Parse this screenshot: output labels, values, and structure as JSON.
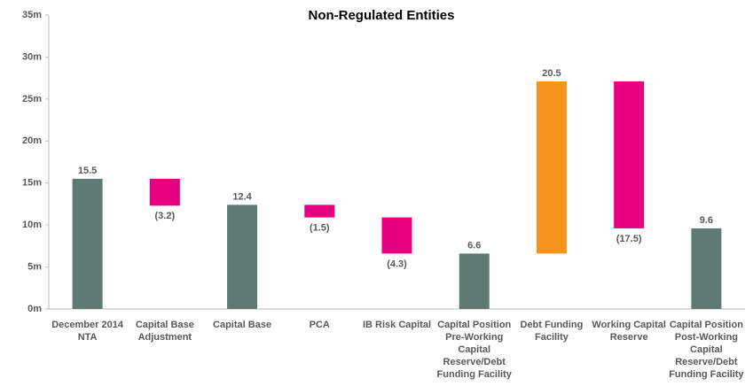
{
  "chart_data": {
    "type": "waterfall",
    "title": "Non-Regulated Entities",
    "categories": [
      [
        "December 2014",
        "NTA"
      ],
      [
        "Capital Base",
        "Adjustment"
      ],
      [
        "Capital Base"
      ],
      [
        "PCA"
      ],
      [
        "IB Risk Capital"
      ],
      [
        "Capital Position",
        "Pre-Working",
        "Capital",
        "Reserve/Debt",
        "Funding Facility"
      ],
      [
        "Debt Funding",
        "Facility"
      ],
      [
        "Working Capital",
        "Reserve"
      ],
      [
        "Capital Position",
        "Post-Working",
        "Capital",
        "Reserve/Debt",
        "Funding Facility"
      ]
    ],
    "values": [
      15.5,
      -3.2,
      12.4,
      -1.5,
      -4.3,
      6.6,
      20.5,
      -17.5,
      9.6
    ],
    "value_labels": [
      "15.5",
      "(3.2)",
      "12.4",
      "(1.5)",
      "(4.3)",
      "6.6",
      "20.5",
      "(17.5)",
      "9.6"
    ],
    "measure": [
      "absolute",
      "relative",
      "absolute",
      "relative",
      "relative",
      "absolute",
      "relative",
      "relative",
      "absolute"
    ],
    "colors": [
      "#5f7a72",
      "#e6007e",
      "#5f7a72",
      "#e6007e",
      "#e6007e",
      "#5f7a72",
      "#f7941d",
      "#e6007e",
      "#5f7a72"
    ],
    "ylim": [
      0,
      35
    ],
    "yticks": [
      {
        "value": 0,
        "label": "0m"
      },
      {
        "value": 5,
        "label": "5m"
      },
      {
        "value": 10,
        "label": "10m"
      },
      {
        "value": 15,
        "label": "15m"
      },
      {
        "value": 20,
        "label": "20m"
      },
      {
        "value": 25,
        "label": "25m"
      },
      {
        "value": 30,
        "label": "30m"
      },
      {
        "value": 35,
        "label": "35m"
      }
    ]
  }
}
